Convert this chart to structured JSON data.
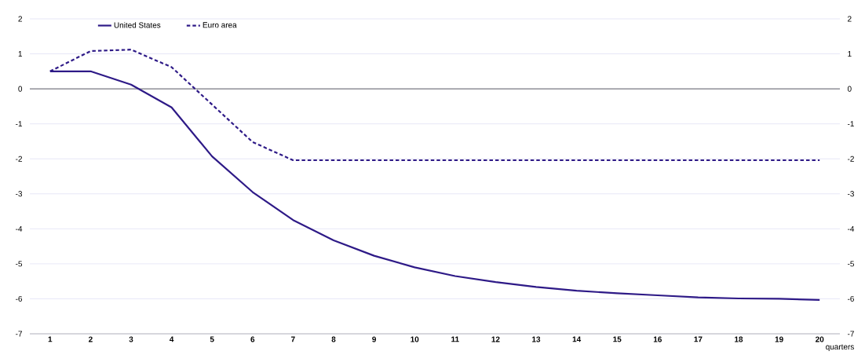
{
  "chart_data": {
    "type": "line",
    "xlabel": "quarters",
    "categories": [
      "1",
      "2",
      "3",
      "4",
      "5",
      "6",
      "7",
      "8",
      "9",
      "10",
      "11",
      "12",
      "13",
      "14",
      "15",
      "16",
      "17",
      "18",
      "19",
      "20"
    ],
    "series": [
      {
        "name": "United States",
        "color": "#2e1a87",
        "line_style": "solid",
        "values": [
          0.5,
          0.5,
          0.12,
          -0.53,
          -1.93,
          -2.95,
          -3.75,
          -4.33,
          -4.77,
          -5.1,
          -5.35,
          -5.52,
          -5.66,
          -5.77,
          -5.84,
          -5.9,
          -5.96,
          -5.99,
          -6.0,
          -6.03
        ]
      },
      {
        "name": "Euro area",
        "color": "#2e1a87",
        "line_style": "dashed",
        "values": [
          0.5,
          1.08,
          1.12,
          0.62,
          -0.45,
          -1.52,
          -2.04,
          -2.04,
          -2.04,
          -2.04,
          -2.04,
          -2.04,
          -2.04,
          -2.04,
          -2.04,
          -2.04,
          -2.04,
          -2.04,
          -2.04,
          -2.04
        ]
      }
    ],
    "ylim": [
      -7,
      2
    ],
    "yticks": [
      -7,
      -6,
      -5,
      -4,
      -3,
      -2,
      -1,
      0,
      1,
      2
    ],
    "y2lim": [
      -7,
      2
    ],
    "y2ticks": [
      -7,
      -6,
      -5,
      -4,
      -3,
      -2,
      -1,
      0,
      1,
      2
    ],
    "ref_lines": [
      {
        "axis": "y",
        "value": 0,
        "color": "#000000"
      }
    ],
    "grid": "y",
    "legend": "top left"
  }
}
